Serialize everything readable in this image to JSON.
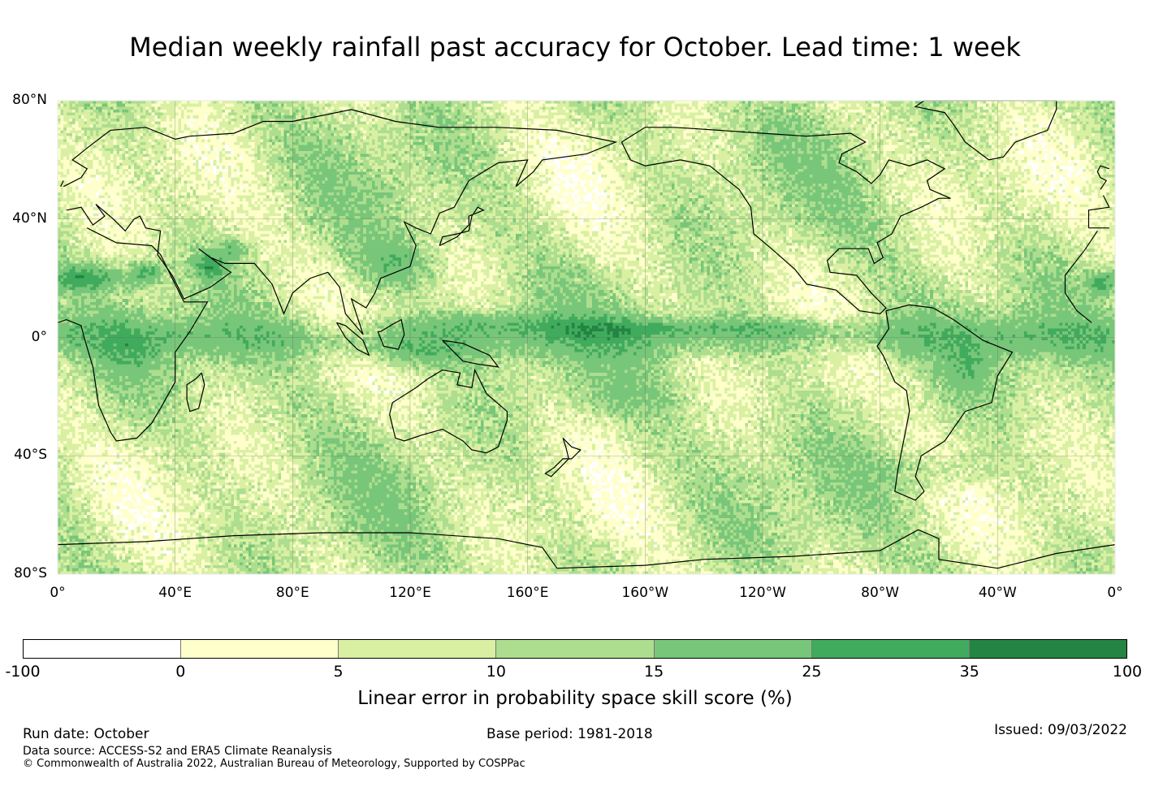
{
  "title": "Median weekly rainfall past accuracy for October. Lead time: 1 week",
  "map": {
    "lat_labels": [
      "80°N",
      "40°N",
      "0°",
      "40°S",
      "80°S"
    ],
    "lon_labels": [
      "0°",
      "40°E",
      "80°E",
      "120°E",
      "160°E",
      "160°W",
      "120°W",
      "80°W",
      "40°W",
      "0°"
    ],
    "extent": {
      "lon_min": 0,
      "lon_max": 360,
      "lat_min": -80,
      "lat_max": 80
    },
    "features": [
      "coastlines",
      "graticule",
      "skill-score-raster"
    ]
  },
  "colorbar": {
    "colors": [
      "#ffffff",
      "#ffffcc",
      "#d9f0a3",
      "#addd8e",
      "#78c679",
      "#41ab5d",
      "#238443"
    ],
    "ticks": [
      "-100",
      "0",
      "5",
      "10",
      "15",
      "25",
      "35",
      "100"
    ],
    "label": "Linear error in probability space skill score (%)"
  },
  "footer": {
    "run_date": "Run date: October",
    "base_period": "Base period: 1981-2018",
    "issued": "Issued: 09/03/2022",
    "data_source": "Data source: ACCESS-S2 and ERA5 Climate Reanalysis",
    "copyright": "© Commonwealth of Australia 2022, Australian Bureau of Meteorology, Supported by COSPPac"
  }
}
